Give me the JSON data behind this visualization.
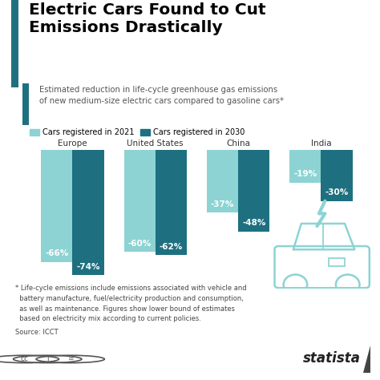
{
  "title": "Electric Cars Found to Cut\nEmissions Drastically",
  "subtitle": "Estimated reduction in life-cycle greenhouse gas emissions\nof new medium-size electric cars compared to gasoline cars*",
  "legend_2021": "Cars registered in 2021",
  "legend_2030": "Cars registered in 2030",
  "categories": [
    "Europe",
    "United States",
    "China",
    "India"
  ],
  "values_2021": [
    -66,
    -60,
    -37,
    -19
  ],
  "values_2030": [
    -74,
    -62,
    -48,
    -30
  ],
  "labels_2021": [
    "-66%",
    "-60%",
    "-37%",
    "-19%"
  ],
  "labels_2030": [
    "-74%",
    "-62%",
    "-48%",
    "-30%"
  ],
  "color_2021": "#8dd3d3",
  "color_2030": "#1e7080",
  "background_color": "#ffffff",
  "footnote": "* Life-cycle emissions include emissions associated with vehicle and\n  battery manufacture, fuel/electricity production and consumption,\n  as well as maintenance. Figures show lower bound of estimates\n  based on electricity mix according to current policies.",
  "source": "Source: ICCT",
  "bar_width": 0.38,
  "title_accent_color": "#1e7080",
  "bottom_bg": "#e8e8e8"
}
